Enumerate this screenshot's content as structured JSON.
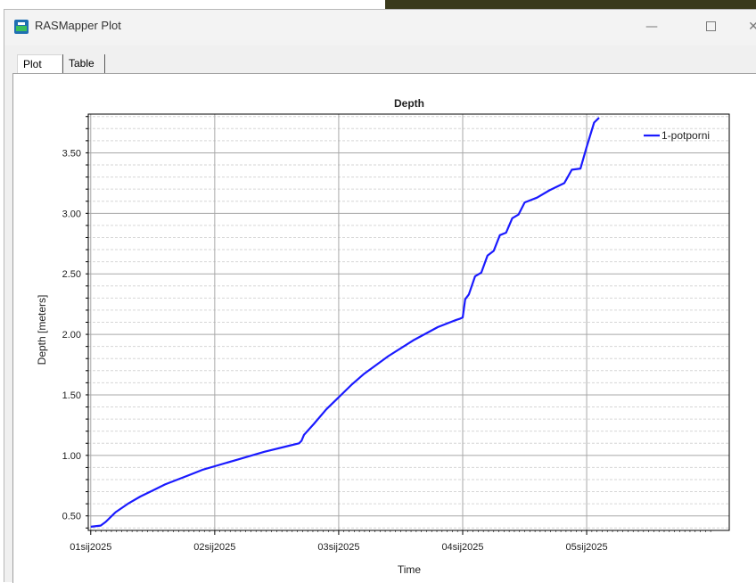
{
  "window": {
    "title": "RASMapper Plot",
    "controls": {
      "minimize": "—",
      "close": "✕"
    }
  },
  "tabs": [
    {
      "label": "Plot",
      "active": true
    },
    {
      "label": "Table",
      "active": false
    }
  ],
  "chart_data": {
    "type": "line",
    "title": "Depth",
    "xlabel": "Time",
    "ylabel": "Depth [meters]",
    "x_ticks": [
      "01sij2025",
      "02sij2025",
      "03sij2025",
      "04sij2025",
      "05sij2025"
    ],
    "y_ticks": [
      "0.50",
      "1.00",
      "1.50",
      "2.00",
      "2.50",
      "3.00",
      "3.50"
    ],
    "xlim": [
      -0.02,
      5.15
    ],
    "ylim": [
      0.38,
      3.82
    ],
    "grid": true,
    "legend": "top-right",
    "series": [
      {
        "name": "1-potporni",
        "color": "#1a1aff",
        "x": [
          0.0,
          0.08,
          0.12,
          0.2,
          0.3,
          0.4,
          0.5,
          0.6,
          0.7,
          0.8,
          0.9,
          1.0,
          1.2,
          1.4,
          1.6,
          1.68,
          1.7,
          1.72,
          1.8,
          1.9,
          2.0,
          2.1,
          2.2,
          2.4,
          2.6,
          2.8,
          2.95,
          2.98,
          3.0,
          3.02,
          3.05,
          3.1,
          3.15,
          3.2,
          3.25,
          3.3,
          3.35,
          3.4,
          3.45,
          3.5,
          3.6,
          3.7,
          3.82,
          3.88,
          3.95,
          4.0,
          4.06,
          4.1
        ],
        "values": [
          0.41,
          0.42,
          0.45,
          0.53,
          0.6,
          0.66,
          0.71,
          0.76,
          0.8,
          0.84,
          0.88,
          0.91,
          0.97,
          1.03,
          1.08,
          1.1,
          1.12,
          1.17,
          1.26,
          1.38,
          1.48,
          1.58,
          1.67,
          1.82,
          1.95,
          2.06,
          2.12,
          2.13,
          2.14,
          2.29,
          2.33,
          2.48,
          2.51,
          2.65,
          2.69,
          2.82,
          2.84,
          2.96,
          2.99,
          3.09,
          3.13,
          3.19,
          3.25,
          3.36,
          3.37,
          3.55,
          3.75,
          3.79
        ]
      }
    ]
  }
}
